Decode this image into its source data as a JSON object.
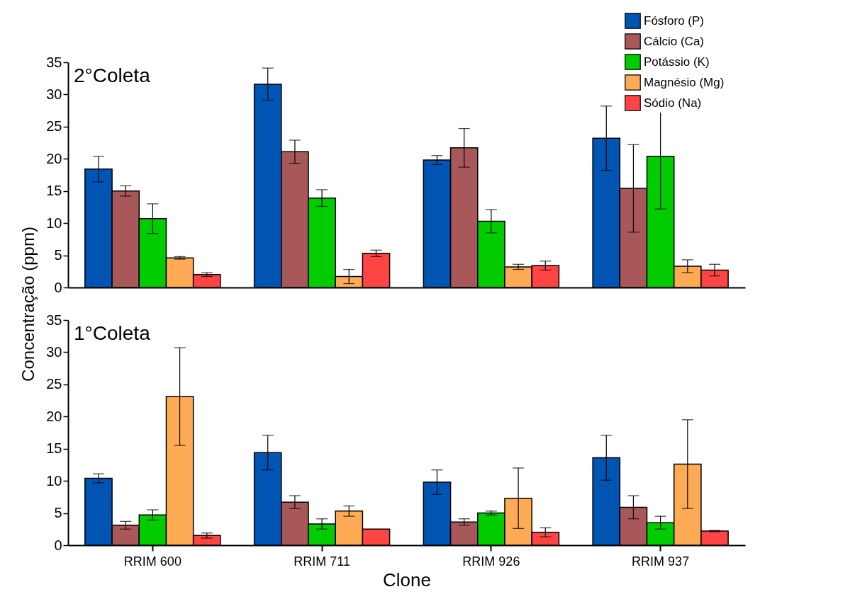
{
  "chart_data": [
    {
      "type": "bar",
      "categories": [
        null,
        null,
        null,
        null
      ],
      "ylabel": "Concentração (ppm)",
      "ylim": [
        0,
        35
      ],
      "yticks": [
        0,
        5,
        10,
        15,
        20,
        25,
        30,
        35
      ],
      "tick_labels": "y",
      "legend": "top right",
      "annotations": [
        "2°Coleta"
      ],
      "series": [
        {
          "name": "Fósforo (P)",
          "color": "#0055b3",
          "values": [
            18.4,
            31.6,
            19.8,
            23.2
          ],
          "errors": [
            2.0,
            2.5,
            0.7,
            5.0
          ]
        },
        {
          "name": "Cálcio (Ca)",
          "color": "#a85858",
          "values": [
            15.0,
            21.1,
            21.7,
            15.4
          ],
          "errors": [
            0.8,
            1.8,
            3.0,
            6.8
          ]
        },
        {
          "name": "Potássio (K)",
          "color": "#00cc00",
          "values": [
            10.7,
            13.9,
            10.3,
            20.4
          ],
          "errors": [
            2.3,
            1.3,
            1.8,
            8.2
          ]
        },
        {
          "name": "Magnésio (Mg)",
          "color": "#ffaa55",
          "values": [
            4.6,
            1.7,
            3.2,
            3.3
          ],
          "errors": [
            0.2,
            1.1,
            0.4,
            1.0
          ]
        },
        {
          "name": "Sódio (Na)",
          "color": "#ff4444",
          "values": [
            2.0,
            5.3,
            3.4,
            2.7
          ],
          "errors": [
            0.3,
            0.5,
            0.7,
            0.9
          ]
        }
      ]
    },
    {
      "type": "bar",
      "categories": [
        "RRIM 600",
        "RRIM 711",
        "RRIM 926",
        "RRIM 937"
      ],
      "xlabel": "Clone",
      "ylim": [
        0,
        35
      ],
      "yticks": [
        0,
        5,
        10,
        15,
        20,
        25,
        30,
        35
      ],
      "annotations": [
        "1°Coleta"
      ],
      "series": [
        {
          "color": "#0055b3",
          "values": [
            10.4,
            14.4,
            9.8,
            13.6
          ],
          "errors": [
            0.7,
            2.7,
            1.9,
            3.5
          ]
        },
        {
          "color": "#a85858",
          "values": [
            3.1,
            6.7,
            3.6,
            5.9
          ],
          "errors": [
            0.6,
            1.0,
            0.5,
            1.8
          ]
        },
        {
          "color": "#00cc00",
          "values": [
            4.7,
            3.3,
            5.0,
            3.5
          ],
          "errors": [
            0.8,
            0.8,
            0.3,
            1.0
          ]
        },
        {
          "color": "#ffaa55",
          "values": [
            23.1,
            5.3,
            7.3,
            12.6
          ],
          "errors": [
            7.6,
            0.8,
            4.7,
            6.9
          ]
        },
        {
          "color": "#ff4444",
          "values": [
            1.5,
            2.5,
            2.0,
            2.2
          ],
          "errors": [
            0.4,
            null,
            0.7,
            0.1
          ]
        }
      ]
    }
  ]
}
